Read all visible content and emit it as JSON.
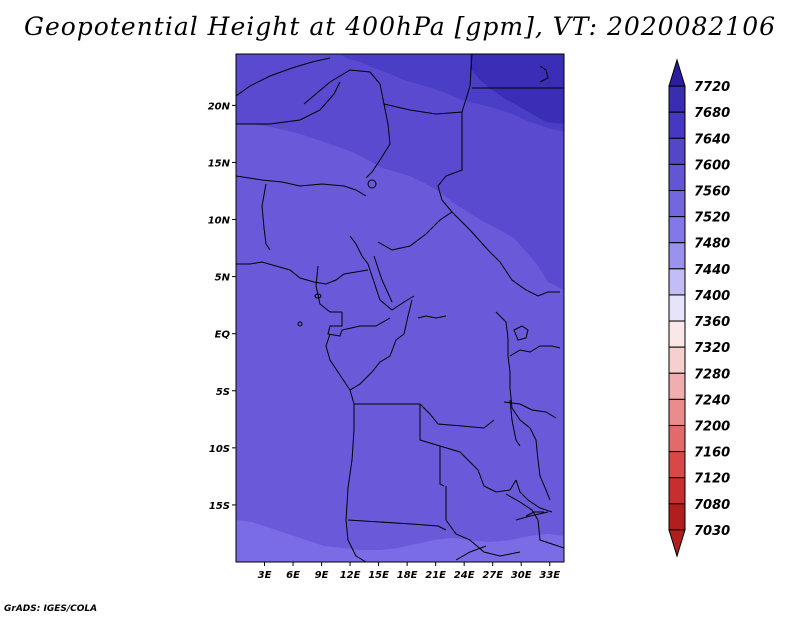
{
  "title": "Geopotential Height at 400hPa [gpm], VT: 2020082106",
  "credit": "GrADS: IGES/COLA",
  "map": {
    "lat_labels": [
      {
        "label": "20N",
        "lat": 20
      },
      {
        "label": "15N",
        "lat": 15
      },
      {
        "label": "10N",
        "lat": 10
      },
      {
        "label": "5N",
        "lat": 5
      },
      {
        "label": "EQ",
        "lat": 0
      },
      {
        "label": "5S",
        "lat": -5
      },
      {
        "label": "10S",
        "lat": -10
      },
      {
        "label": "15S",
        "lat": -15
      }
    ],
    "lon_labels": [
      {
        "label": "3E",
        "lon": 3
      },
      {
        "label": "6E",
        "lon": 6
      },
      {
        "label": "9E",
        "lon": 9
      },
      {
        "label": "12E",
        "lon": 12
      },
      {
        "label": "15E",
        "lon": 15
      },
      {
        "label": "18E",
        "lon": 18
      },
      {
        "label": "21E",
        "lon": 21
      },
      {
        "label": "24E",
        "lon": 24
      },
      {
        "label": "27E",
        "lon": 27
      },
      {
        "label": "30E",
        "lon": 30
      },
      {
        "label": "33E",
        "lon": 33
      }
    ],
    "extent": {
      "lon_min": 0,
      "lon_max": 34.5,
      "lat_min": -20,
      "lat_max": 24.5
    }
  },
  "colorbar": {
    "levels": [
      "7720",
      "7680",
      "7640",
      "7600",
      "7560",
      "7520",
      "7480",
      "7440",
      "7400",
      "7360",
      "7320",
      "7280",
      "7240",
      "7200",
      "7160",
      "7120",
      "7080",
      "7030"
    ],
    "colors": [
      "#2c1ca0",
      "#3a2eb0",
      "#4638c0",
      "#5546c8",
      "#6456d2",
      "#7466de",
      "#8478e8",
      "#9a92ee",
      "#c2beF5",
      "#e6e4fa",
      "#fae8e8",
      "#f6cfcf",
      "#f1aeae",
      "#ea8c8c",
      "#e26a6a",
      "#d84848",
      "#c82e2e",
      "#b01e1e"
    ]
  },
  "field_colors": {
    "c7560": "#6a5ad9",
    "c7600": "#5a4ad0",
    "c7640": "#4a3ec6",
    "c7680": "#3a2eb6",
    "c7520": "#7a6ce4"
  }
}
